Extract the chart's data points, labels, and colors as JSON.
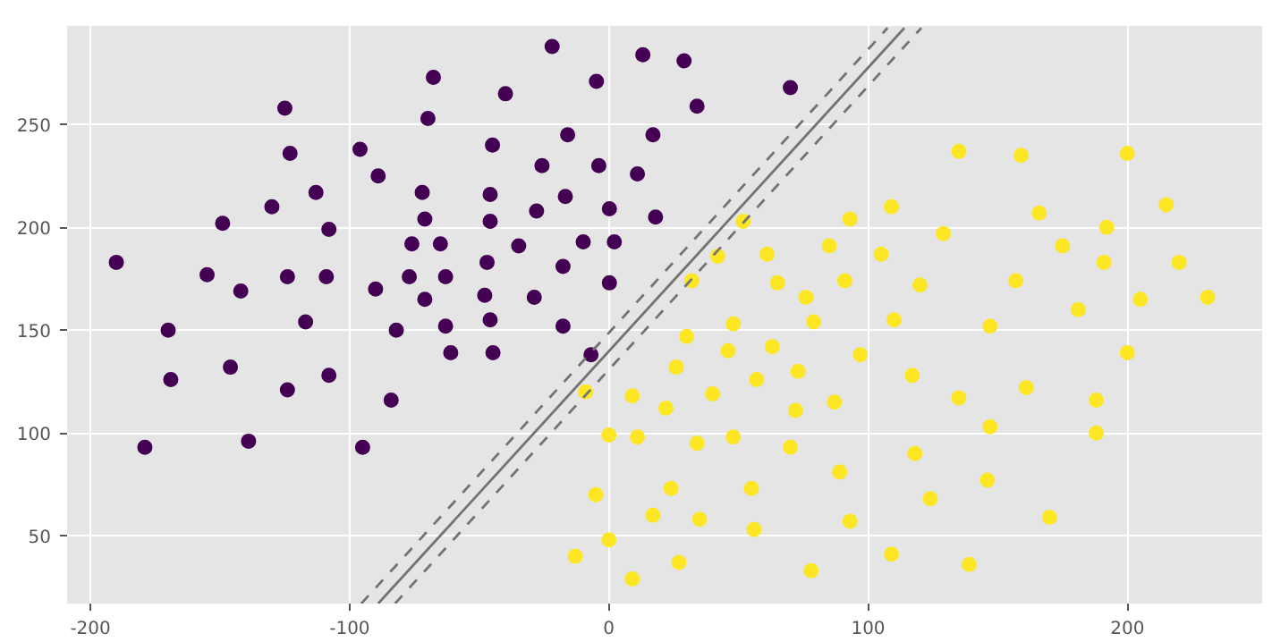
{
  "chart_data": {
    "type": "scatter",
    "grid": true,
    "xlim": [
      -209,
      252
    ],
    "ylim": [
      17,
      298
    ],
    "xticks": [
      -200,
      -100,
      0,
      100,
      200
    ],
    "yticks": [
      50,
      100,
      150,
      200,
      250
    ],
    "series": [
      {
        "color": "#440154",
        "marker": "circle",
        "x": [
          -67.7,
          -69.8,
          -125,
          -123,
          -96,
          -89,
          -72,
          -113,
          -130,
          -71,
          -149,
          -108,
          -76,
          -65,
          -190,
          -155,
          -124,
          -109,
          -77,
          -63,
          -142,
          -90,
          -71,
          -117,
          -170,
          -82,
          -63,
          -61,
          -146,
          -169,
          -108,
          -124,
          -84,
          -179,
          -139,
          -95,
          -21.9,
          13.1,
          29,
          -39.9,
          -4.8,
          70,
          34,
          -15.9,
          17,
          -44.9,
          -25.8,
          -3.9,
          11,
          -45.8,
          -16.8,
          -45.8,
          -27.9,
          0.2,
          18,
          -34.8,
          -9.9,
          2.1,
          -47,
          -17.7,
          -47.9,
          -28.8,
          0.2,
          -45.8,
          -17.7,
          -44.7,
          -6.9
        ],
        "values": [
          273,
          253,
          258,
          236,
          238,
          225,
          217,
          217,
          210,
          204,
          202,
          199,
          192,
          192,
          183,
          177,
          176,
          176,
          176,
          176,
          169,
          170,
          165,
          154,
          150,
          150,
          152,
          139,
          132,
          126,
          128,
          121,
          116,
          93,
          96,
          93,
          288,
          284,
          281,
          265,
          271,
          268,
          259,
          245,
          245,
          240,
          230,
          230,
          226,
          216,
          215,
          203,
          208,
          209,
          205,
          191,
          193,
          193,
          183,
          181,
          167,
          166,
          173,
          155,
          152,
          139,
          138
        ]
      },
      {
        "color": "#fde725",
        "marker": "circle",
        "x": [
          51.8,
          61,
          85,
          42,
          32,
          65,
          76,
          48,
          79,
          30,
          46,
          63,
          26,
          73,
          57,
          40,
          9,
          -9,
          22,
          72,
          87,
          0,
          11,
          34,
          48,
          70,
          93,
          109,
          105,
          91,
          110,
          97,
          89,
          55,
          93,
          56,
          109,
          78,
          24,
          -5,
          17,
          35,
          0,
          -13,
          27,
          9,
          135,
          159,
          200,
          166,
          215,
          192,
          129,
          175,
          191,
          220,
          120,
          157,
          205,
          231,
          181,
          147,
          200,
          117,
          161,
          135,
          188,
          147,
          188,
          118,
          146,
          124,
          170,
          139
        ],
        "values": [
          203,
          187,
          191,
          186,
          174,
          173,
          166,
          153,
          154,
          147,
          140,
          142,
          132,
          130,
          126,
          119,
          118,
          120,
          112,
          111,
          115,
          99,
          98,
          95,
          98,
          93,
          204,
          210,
          187,
          174,
          155,
          138,
          81,
          73,
          57,
          53,
          41,
          33,
          73,
          70,
          60,
          58,
          48,
          40,
          37,
          29,
          237,
          235,
          236,
          207,
          211,
          200,
          197,
          191,
          183,
          183,
          172,
          174,
          165,
          166,
          160,
          152,
          139,
          128,
          122,
          117,
          116,
          103,
          100,
          90,
          77,
          68,
          59,
          36
        ]
      },
      {
        "type": "line",
        "line_style": "dashed",
        "color": "#737373",
        "x": [
          -95.5,
          107.5
        ],
        "values": [
          17,
          297
        ]
      },
      {
        "type": "line",
        "line_style": "solid",
        "color": "#737373",
        "x": [
          -89,
          114
        ],
        "values": [
          17,
          297
        ]
      },
      {
        "type": "line",
        "line_style": "dashed",
        "color": "#737373",
        "x": [
          -82.5,
          120.5
        ],
        "values": [
          17,
          297
        ]
      }
    ]
  }
}
